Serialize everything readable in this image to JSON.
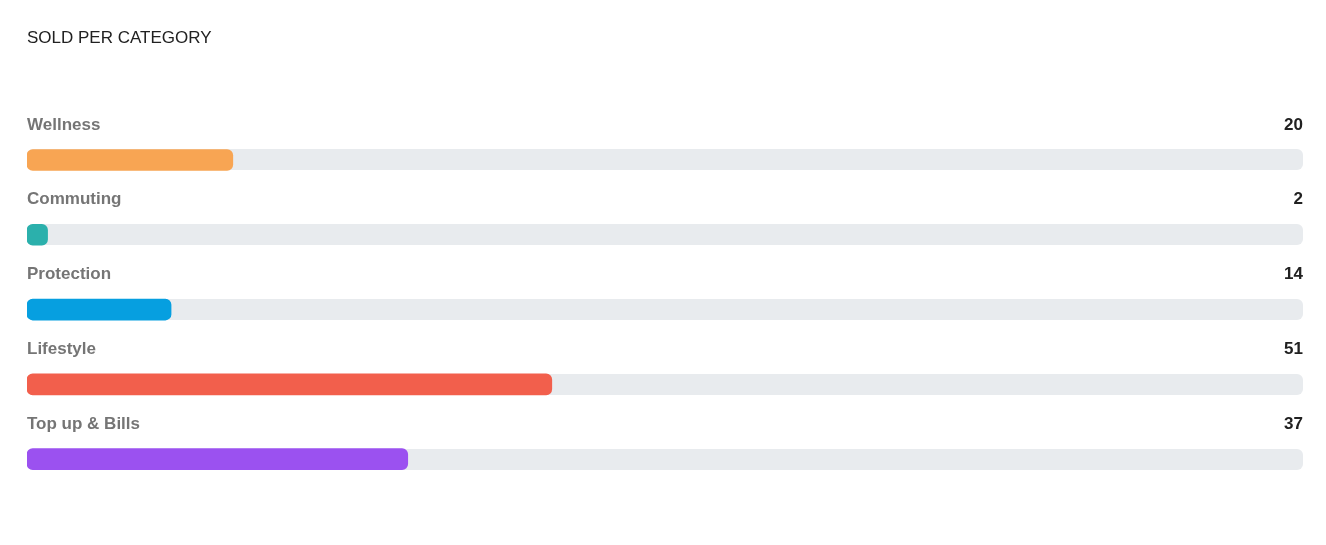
{
  "chart_data": {
    "type": "bar",
    "orientation": "horizontal",
    "title": "SOLD PER CATEGORY",
    "categories": [
      "Wellness",
      "Commuting",
      "Protection",
      "Lifestyle",
      "Top up & Bills"
    ],
    "values": [
      20,
      2,
      14,
      51,
      37
    ],
    "colors": [
      "#f8a553",
      "#2bb0ac",
      "#069fe0",
      "#f25f4c",
      "#9b51f0"
    ],
    "data_labels": true,
    "legend": false
  }
}
